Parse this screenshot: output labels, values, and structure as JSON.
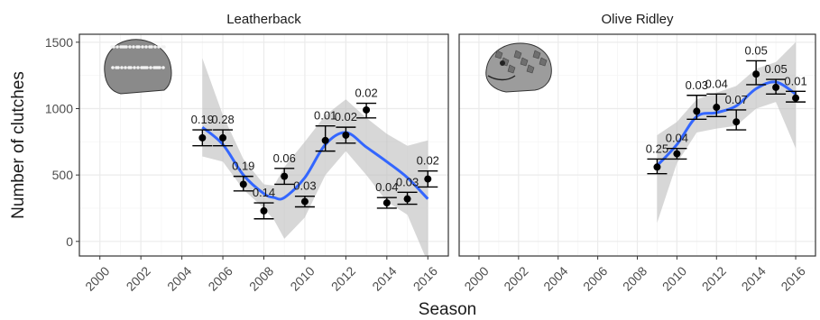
{
  "chart_data": {
    "type": "scatter",
    "xlabel": "Season",
    "ylabel": "Number of clutches",
    "xlim": [
      1999,
      2017
    ],
    "ylim": [
      -110,
      1560
    ],
    "x_ticks": [
      "2000",
      "2002",
      "2004",
      "2006",
      "2008",
      "2010",
      "2012",
      "2014",
      "2016"
    ],
    "y_ticks": [
      "0",
      "500",
      "1000",
      "1500"
    ],
    "grid": true,
    "colors": {
      "panel_bg": "#ffffff",
      "grid_major": "#ebebeb",
      "grid_minor": "#f5f5f5",
      "border": "#333333",
      "point": "#000000",
      "smooth_line": "#3366ff",
      "ribbon": "#bdbdbd"
    },
    "panels": [
      {
        "title": "Leatherback",
        "image": "leatherback-turtle-head-drawing",
        "points": [
          {
            "x": 2005,
            "y": 780,
            "lo": 720,
            "hi": 840,
            "label": "0.19"
          },
          {
            "x": 2006,
            "y": 780,
            "lo": 720,
            "hi": 840,
            "label": "0.28"
          },
          {
            "x": 2007,
            "y": 430,
            "lo": 380,
            "hi": 490,
            "label": "0.19"
          },
          {
            "x": 2008,
            "y": 230,
            "lo": 170,
            "hi": 290,
            "label": "0.14"
          },
          {
            "x": 2009,
            "y": 490,
            "lo": 430,
            "hi": 550,
            "label": "0.06"
          },
          {
            "x": 2010,
            "y": 300,
            "lo": 260,
            "hi": 340,
            "label": "0.03"
          },
          {
            "x": 2011,
            "y": 760,
            "lo": 680,
            "hi": 870,
            "label": "0.01"
          },
          {
            "x": 2012,
            "y": 800,
            "lo": 740,
            "hi": 860,
            "label": "0.02"
          },
          {
            "x": 2013,
            "y": 990,
            "lo": 930,
            "hi": 1040,
            "label": "0.02"
          },
          {
            "x": 2014,
            "y": 290,
            "lo": 250,
            "hi": 330,
            "label": "0.04"
          },
          {
            "x": 2015,
            "y": 320,
            "lo": 280,
            "hi": 370,
            "label": "0.03"
          },
          {
            "x": 2016,
            "y": 470,
            "lo": 410,
            "hi": 530,
            "label": "0.02"
          }
        ],
        "smooth": {
          "x": [
            2005,
            2006,
            2007,
            2008,
            2008.5,
            2009,
            2010,
            2011,
            2012,
            2013,
            2014,
            2015,
            2016
          ],
          "y": [
            860,
            730,
            500,
            360,
            330,
            330,
            480,
            730,
            820,
            710,
            600,
            480,
            320
          ],
          "lower": [
            640,
            600,
            390,
            250,
            160,
            20,
            180,
            500,
            680,
            500,
            300,
            200,
            -160
          ],
          "upper": [
            1380,
            950,
            620,
            430,
            420,
            560,
            750,
            950,
            1070,
            930,
            810,
            720,
            760
          ]
        }
      },
      {
        "title": "Olive Ridley",
        "image": "olive-ridley-turtle-head-drawing",
        "points": [
          {
            "x": 2009,
            "y": 560,
            "lo": 510,
            "hi": 620,
            "label": "0.25"
          },
          {
            "x": 2010,
            "y": 660,
            "lo": 620,
            "hi": 700,
            "label": "0.04"
          },
          {
            "x": 2011,
            "y": 980,
            "lo": 920,
            "hi": 1100,
            "label": "0.03"
          },
          {
            "x": 2012,
            "y": 1010,
            "lo": 940,
            "hi": 1110,
            "label": "0.04"
          },
          {
            "x": 2013,
            "y": 900,
            "lo": 840,
            "hi": 990,
            "label": "0.07"
          },
          {
            "x": 2014,
            "y": 1260,
            "lo": 1180,
            "hi": 1360,
            "label": "0.05"
          },
          {
            "x": 2015,
            "y": 1160,
            "lo": 1110,
            "hi": 1220,
            "label": "0.05"
          },
          {
            "x": 2016,
            "y": 1080,
            "lo": 1050,
            "hi": 1130,
            "label": "0.01"
          }
        ],
        "smooth": {
          "x": [
            2009,
            2010,
            2011,
            2012,
            2013,
            2014,
            2015,
            2016
          ],
          "y": [
            570,
            730,
            940,
            970,
            1020,
            1150,
            1200,
            1110
          ],
          "lower": [
            140,
            590,
            820,
            850,
            870,
            1000,
            1050,
            700
          ],
          "upper": [
            800,
            900,
            1070,
            1120,
            1170,
            1300,
            1350,
            1500
          ]
        }
      }
    ]
  }
}
